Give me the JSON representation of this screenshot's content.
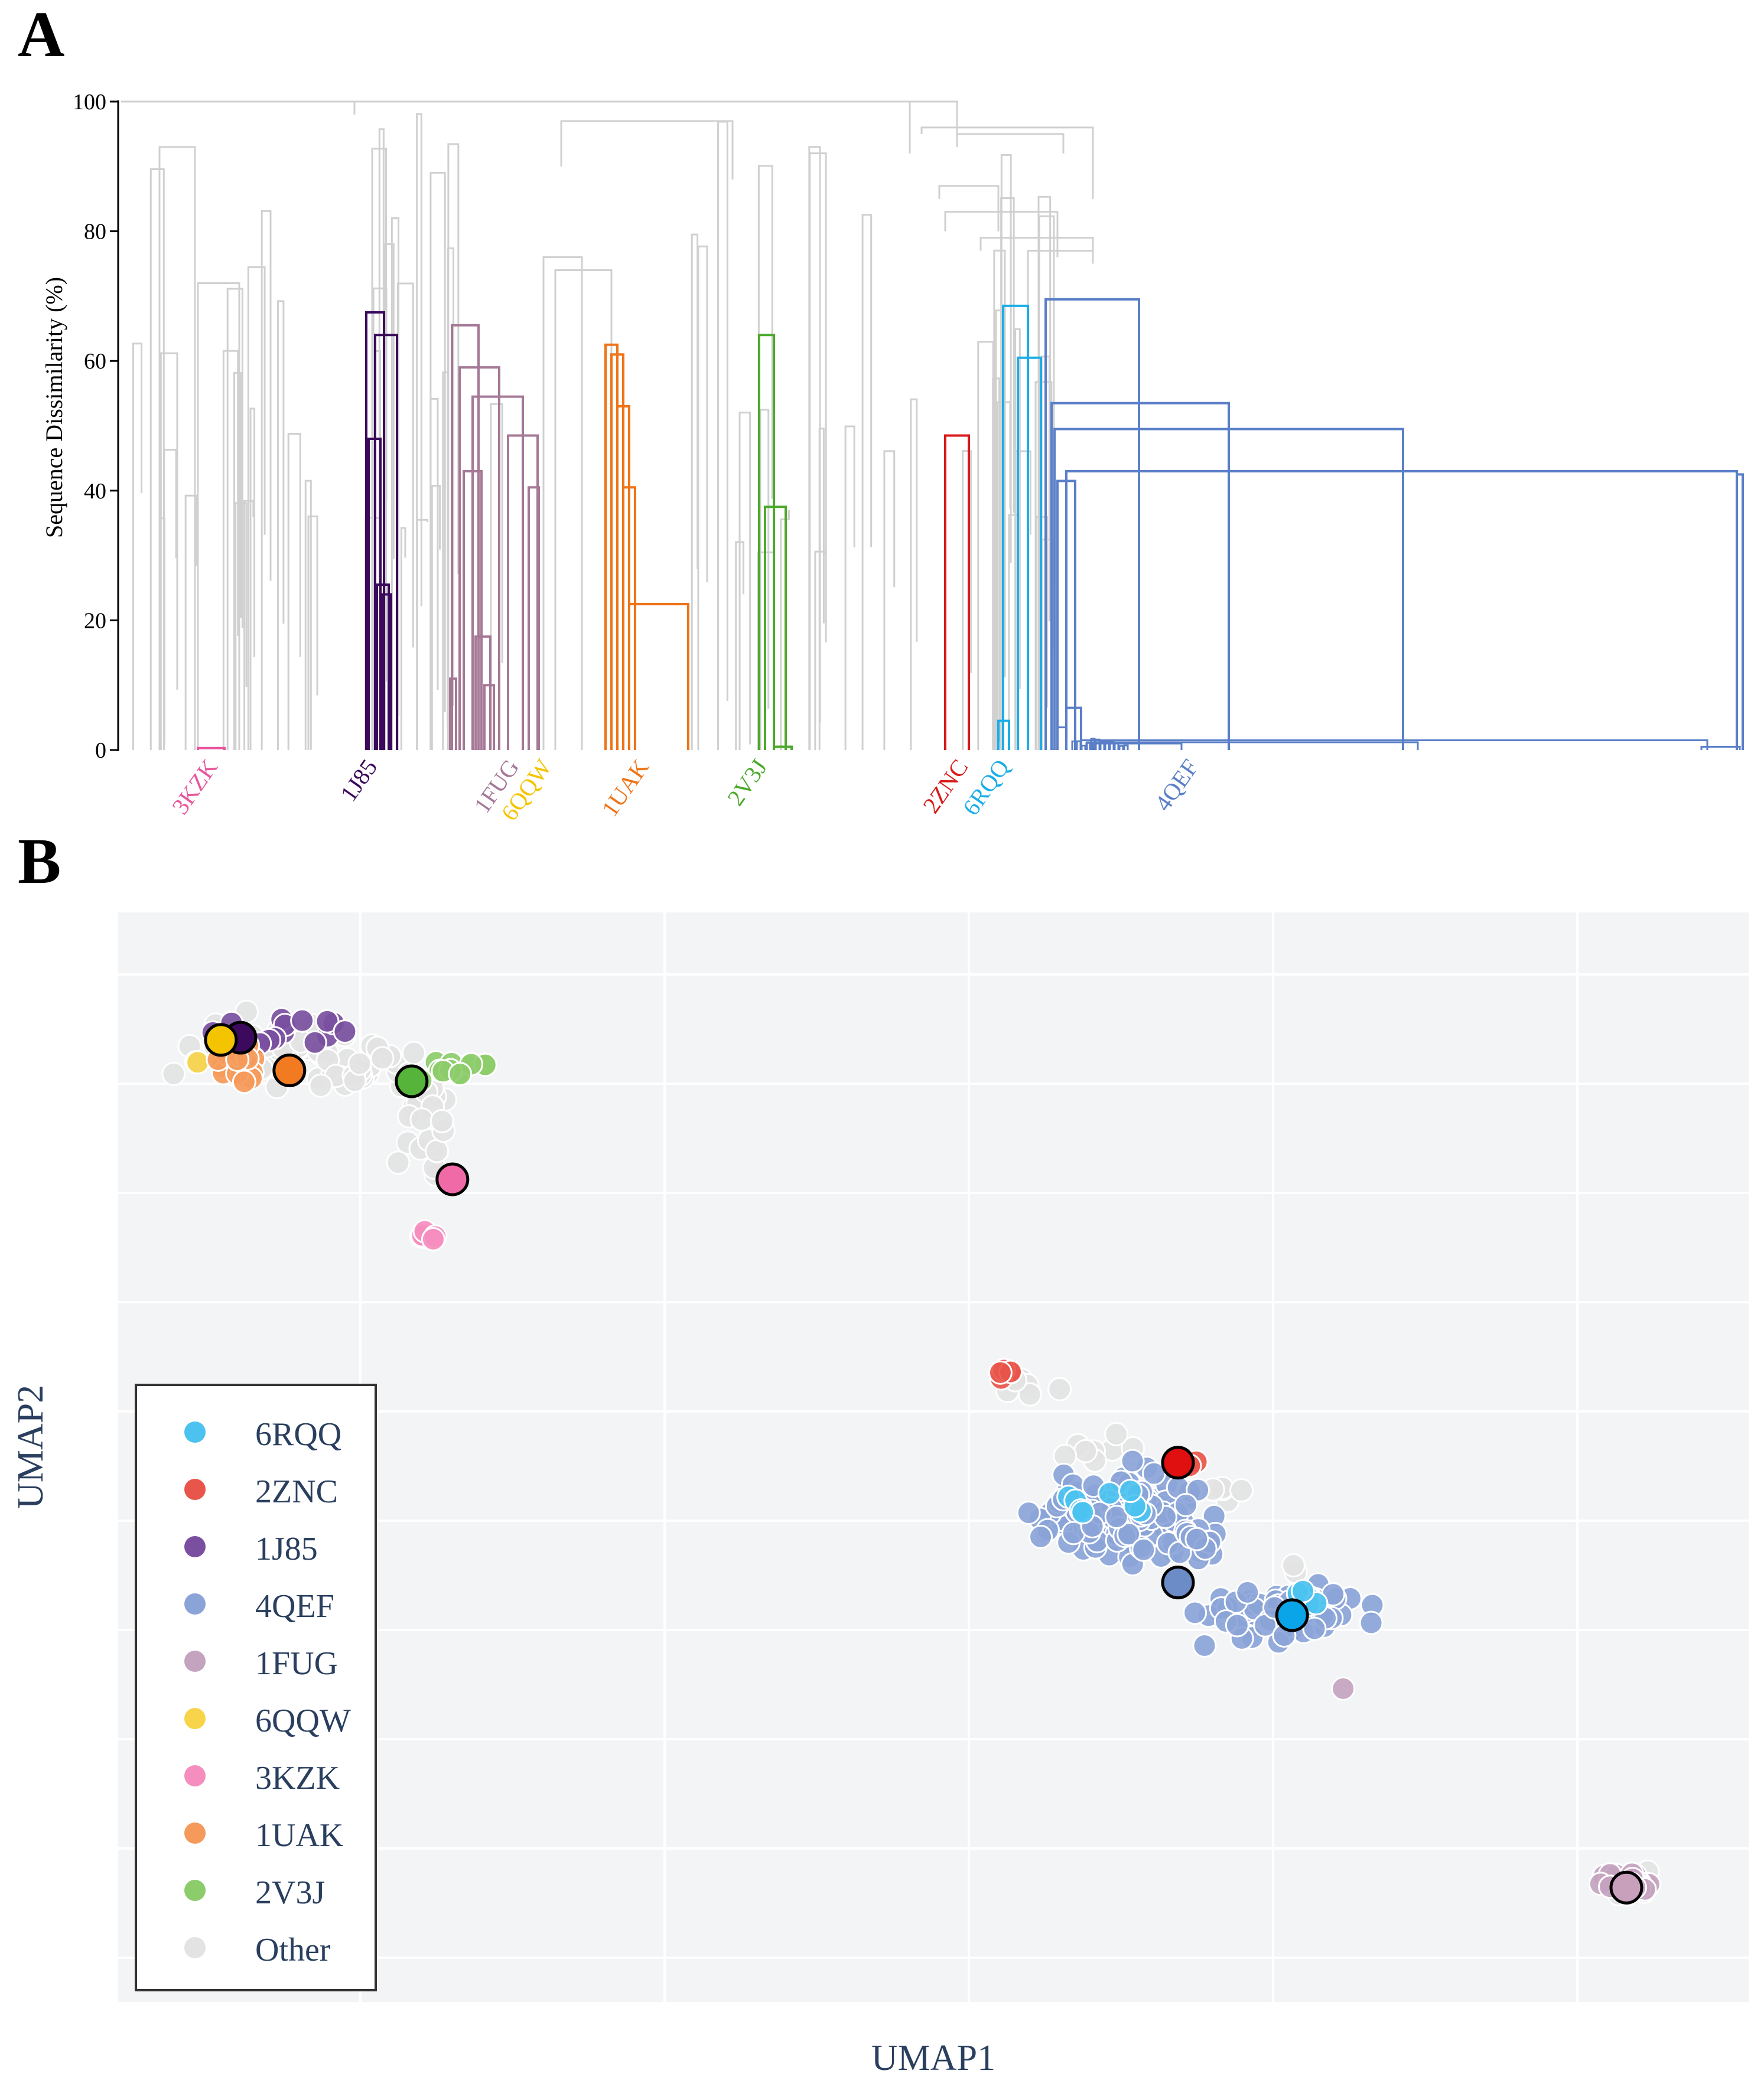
{
  "chart_data": [
    {
      "type": "dendrogram",
      "panel_label": "A",
      "ylabel": "Sequence Dissimilarity (%)",
      "ylim": [
        0,
        100
      ],
      "yticks": [
        0,
        20,
        40,
        60,
        80,
        100
      ],
      "leaf_labels": [
        {
          "name": "3KZK",
          "color": "#e8569b"
        },
        {
          "name": "1J85",
          "color": "#3b0a5c"
        },
        {
          "name": "1FUG",
          "color": "#a57896"
        },
        {
          "name": "6QQW",
          "color": "#f5c400"
        },
        {
          "name": "1UAK",
          "color": "#ef7418"
        },
        {
          "name": "2V3J",
          "color": "#4daa2c"
        },
        {
          "name": "2ZNC",
          "color": "#d91a1a"
        },
        {
          "name": "6RQQ",
          "color": "#1aaee8"
        },
        {
          "name": "4QEF",
          "color": "#5a7fc8"
        }
      ],
      "clusters": [
        {
          "name": "1J85",
          "color": "#3b0a5c",
          "merge_height": 67.5
        },
        {
          "name": "1FUG",
          "color": "#a57896",
          "merge_height": 65.5
        },
        {
          "name": "1UAK",
          "color": "#ef7418",
          "merge_height": 62.5
        },
        {
          "name": "2V3J",
          "color": "#4daa2c",
          "merge_height": 64
        },
        {
          "name": "2ZNC",
          "color": "#d91a1a",
          "merge_height": 48.5
        },
        {
          "name": "6RQQ",
          "color": "#1aaee8",
          "merge_height": 68.5
        },
        {
          "name": "4QEF",
          "color": "#5a7fc8",
          "merge_height": 69.5
        }
      ],
      "other_color": "#d0d0d0"
    },
    {
      "type": "scatter",
      "panel_label": "B",
      "xlabel": "UMAP1",
      "ylabel": "UMAP2",
      "xlim": [
        0,
        100
      ],
      "ylim": [
        0,
        100
      ],
      "legend_position": "bottom-left",
      "series": [
        {
          "name": "6RQQ",
          "color": "#4cc2f0",
          "centroid": [
            72,
            45
          ],
          "spread": [
            3,
            3
          ],
          "count": 14,
          "rep": [
            72,
            35.5
          ]
        },
        {
          "name": "2ZNC",
          "color": "#e8554a",
          "centroid": [
            54.5,
            57.5
          ],
          "spread": [
            0.8,
            0.6
          ],
          "count": 5,
          "rep": [
            65,
            49.5
          ]
        },
        {
          "name": "1J85",
          "color": "#7a4fa0",
          "centroid": [
            10,
            88.5
          ],
          "spread": [
            4,
            2
          ],
          "count": 14,
          "rep": [
            7.5,
            88.5
          ]
        },
        {
          "name": "4QEF",
          "color": "#8ba4d8",
          "centroid": [
            63,
            43
          ],
          "spread": [
            5,
            4
          ],
          "count": 230,
          "rep": [
            65,
            38.5
          ]
        },
        {
          "name": "1FUG",
          "color": "#c4a3bf",
          "centroid": [
            92.5,
            11
          ],
          "spread": [
            1.4,
            1.0
          ],
          "count": 40,
          "rep": [
            92.5,
            10.5
          ]
        },
        {
          "name": "6QQW",
          "color": "#f7d44a",
          "centroid": [
            6.5,
            88.5
          ],
          "spread": [
            1.2,
            1.2
          ],
          "count": 12,
          "rep": [
            6.3,
            88.3
          ]
        },
        {
          "name": "3KZK",
          "color": "#f58dbf",
          "centroid": [
            19,
            70.5
          ],
          "spread": [
            0.8,
            0.5
          ],
          "count": 8,
          "rep": [
            20.5,
            75.5
          ]
        },
        {
          "name": "1UAK",
          "color": "#f59a5a",
          "centroid": [
            7,
            86
          ],
          "spread": [
            2,
            2
          ],
          "count": 18,
          "rep": [
            10.5,
            85.5
          ]
        },
        {
          "name": "2V3J",
          "color": "#8ccc6a",
          "centroid": [
            20,
            85.5
          ],
          "spread": [
            2.2,
            1
          ],
          "count": 14,
          "rep": [
            18,
            84.5
          ]
        },
        {
          "name": "Other",
          "color": "#e3e3e3",
          "centroid": [
            15,
            85
          ],
          "spread": [
            6,
            6
          ],
          "count": 130,
          "rep": null
        }
      ],
      "rep_colors": {
        "6RQQ": "#0aa4e8",
        "2ZNC": "#e01010",
        "1J85": "#3b0a5c",
        "4QEF": "#6c8cc8",
        "1FUG": "#c8a0bc",
        "6QQW": "#f5c400",
        "3KZK": "#f06aa8",
        "1UAK": "#f27a20",
        "2V3J": "#56b43a"
      }
    }
  ]
}
